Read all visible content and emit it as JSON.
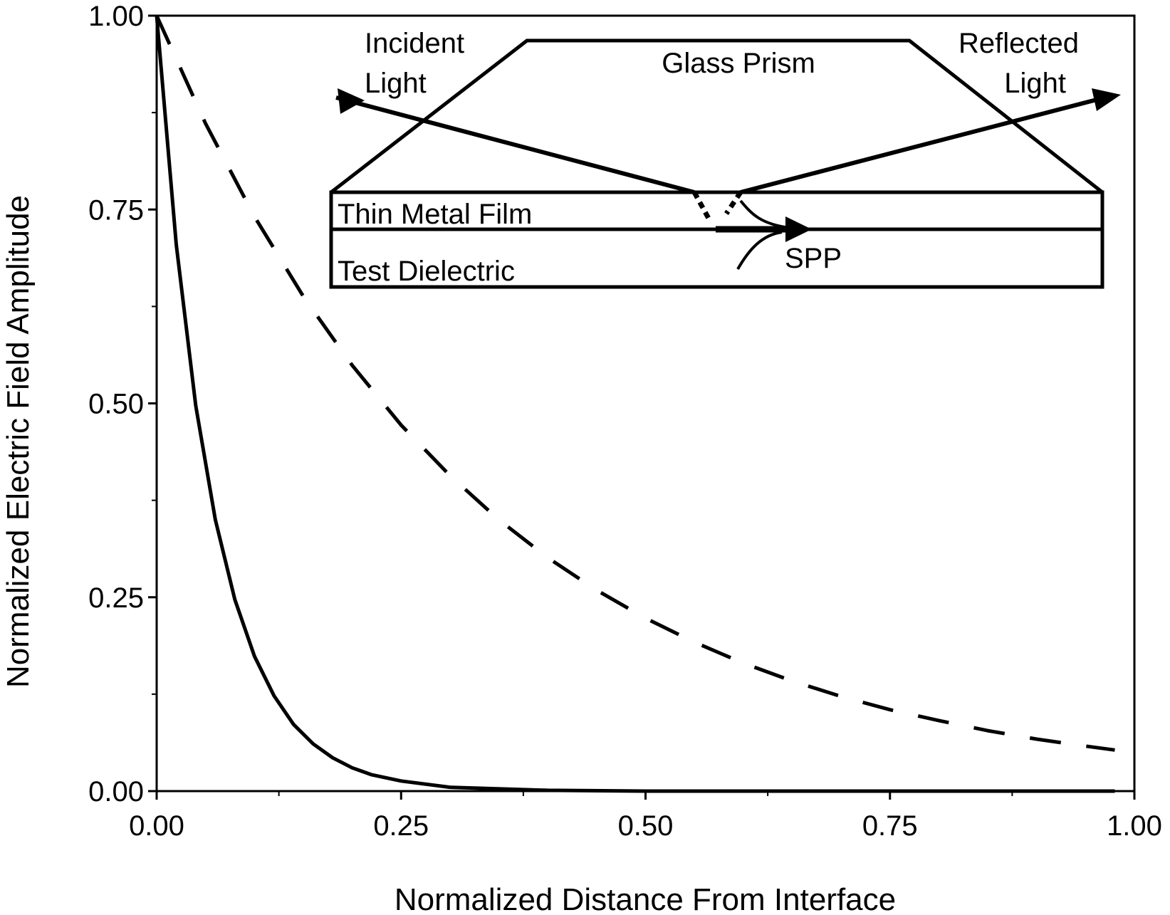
{
  "chart_data": {
    "type": "line",
    "title": "",
    "xlabel": "Normalized Distance From Interface",
    "ylabel": "Normalized Electric Field Amplitude",
    "xlim": [
      0,
      1
    ],
    "ylim": [
      0,
      1
    ],
    "xticks": [
      "0.00",
      "0.25",
      "0.50",
      "0.75",
      "1.00"
    ],
    "yticks": [
      "0.00",
      "0.25",
      "0.50",
      "0.75",
      "1.00"
    ],
    "grid": false,
    "legend": "none",
    "series": [
      {
        "style": "solid",
        "color": "#000000",
        "x": [
          0,
          0.02,
          0.04,
          0.06,
          0.08,
          0.1,
          0.12,
          0.14,
          0.16,
          0.18,
          0.2,
          0.22,
          0.25,
          0.3,
          0.4,
          0.5,
          0.6,
          0.7,
          0.8,
          0.9,
          0.98
        ],
        "y": [
          1.0,
          0.705,
          0.497,
          0.35,
          0.247,
          0.174,
          0.123,
          0.086,
          0.061,
          0.043,
          0.03,
          0.021,
          0.013,
          0.005,
          0.001,
          0.0,
          0.0,
          0.0,
          0.0,
          0.0,
          0.0
        ]
      },
      {
        "style": "dashed",
        "color": "#000000",
        "x": [
          0,
          0.05,
          0.1,
          0.15,
          0.2,
          0.25,
          0.3,
          0.35,
          0.4,
          0.45,
          0.5,
          0.55,
          0.6,
          0.65,
          0.7,
          0.75,
          0.8,
          0.85,
          0.9,
          0.95,
          0.98
        ],
        "y": [
          1.0,
          0.861,
          0.741,
          0.638,
          0.549,
          0.472,
          0.407,
          0.35,
          0.301,
          0.259,
          0.223,
          0.192,
          0.165,
          0.142,
          0.122,
          0.105,
          0.091,
          0.078,
          0.067,
          0.058,
          0.053
        ]
      }
    ]
  },
  "inset": {
    "incident_line1": "Incident",
    "incident_line2": "Light",
    "reflected_line1": "Reflected",
    "reflected_line2": "Light",
    "prism_label": "Glass Prism",
    "film_label": "Thin Metal Film",
    "dielectric_label": "Test Dielectric",
    "spp_label": "SPP"
  }
}
